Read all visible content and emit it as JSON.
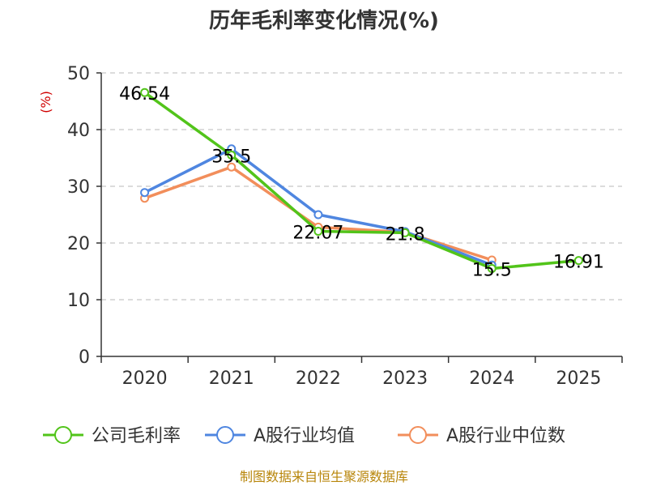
{
  "chart_data": {
    "type": "line",
    "title": "历年毛利率变化情况(%)",
    "ylabel": "(%)",
    "xlabel": "",
    "categories": [
      "2020",
      "2021",
      "2022",
      "2023",
      "2024",
      "2025"
    ],
    "ylim": [
      0,
      50
    ],
    "yticks": [
      0,
      10,
      20,
      30,
      40,
      50
    ],
    "grid": true,
    "legend_position": "bottom",
    "series": [
      {
        "name": "公司毛利率",
        "color": "#52c41a",
        "values": [
          46.54,
          35.5,
          22.07,
          21.8,
          15.5,
          16.91
        ],
        "labels": [
          "46.54",
          "35.5",
          "22.07",
          "21.8",
          "15.5",
          "16.91"
        ]
      },
      {
        "name": "A股行业均值",
        "color": "#4f86e0",
        "values": [
          28.9,
          36.6,
          25.0,
          22.0,
          16.1,
          null
        ]
      },
      {
        "name": "A股行业中位数",
        "color": "#f28e5b",
        "values": [
          27.9,
          33.4,
          22.8,
          21.9,
          17.0,
          null
        ]
      }
    ]
  },
  "footer": {
    "source": "制图数据来自恒生聚源数据库"
  }
}
